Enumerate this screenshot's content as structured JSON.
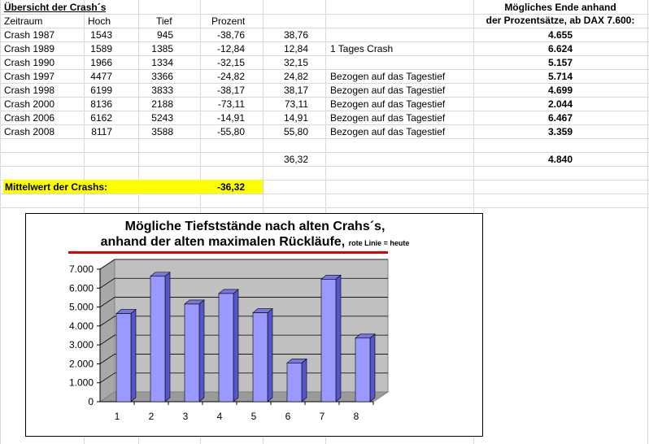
{
  "header": {
    "overview_title": "Übersicht der Crash´s",
    "right_title_1": "Mögliches Ende anhand",
    "right_title_2": "der Prozentsätze, ab DAX 7.600:"
  },
  "columns": [
    "Zeitraum",
    "Hoch",
    "Tief",
    "Prozent"
  ],
  "rows": [
    {
      "name": "Crash 1987",
      "hoch": "1543",
      "tief": "945",
      "prozent": "-38,76",
      "abs": "38,76",
      "note": "",
      "ende": "4.655"
    },
    {
      "name": "Crash 1989",
      "hoch": "1589",
      "tief": "1385",
      "prozent": "-12,84",
      "abs": "12,84",
      "note": "1 Tages Crash",
      "ende": "6.624"
    },
    {
      "name": "Crash 1990",
      "hoch": "1966",
      "tief": "1334",
      "prozent": "-32,15",
      "abs": "32,15",
      "note": "",
      "ende": "5.157"
    },
    {
      "name": "Crash 1997",
      "hoch": "4477",
      "tief": "3366",
      "prozent": "-24,82",
      "abs": "24,82",
      "note": "Bezogen auf das Tagestief",
      "ende": "5.714"
    },
    {
      "name": "Crash 1998",
      "hoch": "6199",
      "tief": "3833",
      "prozent": "-38,17",
      "abs": "38,17",
      "note": "Bezogen auf das Tagestief",
      "ende": "4.699"
    },
    {
      "name": "Crash 2000",
      "hoch": "8136",
      "tief": "2188",
      "prozent": "-73,11",
      "abs": "73,11",
      "note": "Bezogen auf das Tagestief",
      "ende": "2.044"
    },
    {
      "name": "Crash 2006",
      "hoch": "6162",
      "tief": "5243",
      "prozent": "-14,91",
      "abs": "14,91",
      "note": "Bezogen auf das Tagestief",
      "ende": "6.467"
    },
    {
      "name": "Crash 2008",
      "hoch": "8117",
      "tief": "3588",
      "prozent": "-55,80",
      "abs": "55,80",
      "note": "Bezogen auf das Tagestief",
      "ende": "3.359"
    }
  ],
  "summary": {
    "abs_mean": "36,32",
    "ende_mean": "4.840"
  },
  "mittelwert": {
    "label": "Mittelwert der Crashs:",
    "value": "-36,32"
  },
  "chart_title": {
    "line1": "Mögliche Tiefststände nach alten Crahs´s,",
    "line2": "anhand der alten maximalen Rückläufe,",
    "note": "rote Linie = heute"
  },
  "colors": {
    "bar": "#9999ff",
    "highlight": "#ffff00",
    "redline": "#e00000",
    "plotarea": "#c0c0c0"
  },
  "chart_data": {
    "type": "bar",
    "title": "Mögliche Tiefststände nach alten Crahs´s, anhand der alten maximalen Rückläufe, rote Linie = heute",
    "categories": [
      "1",
      "2",
      "3",
      "4",
      "5",
      "6",
      "7",
      "8"
    ],
    "values": [
      4655,
      6624,
      5157,
      5714,
      4699,
      2044,
      6467,
      3359
    ],
    "yticks": [
      "7.000",
      "6.000",
      "5.000",
      "4.000",
      "3.000",
      "2.000",
      "1.000",
      "0"
    ],
    "ylim": [
      0,
      7000
    ],
    "grid": true,
    "xlabel": "",
    "ylabel": ""
  }
}
